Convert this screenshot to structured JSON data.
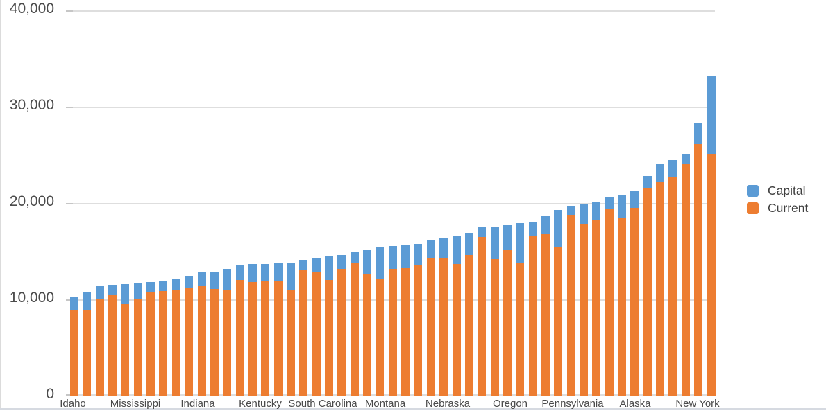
{
  "chart_data": {
    "type": "bar",
    "stacked": true,
    "orientation": "vertical",
    "title": "",
    "xlabel": "",
    "ylabel": "",
    "ylim": [
      0,
      40000
    ],
    "grid": true,
    "legend_position": "right",
    "n_bars": 51,
    "y_ticks": [
      {
        "value": 0,
        "label": "0"
      },
      {
        "value": 10000,
        "label": "10,000"
      },
      {
        "value": 20000,
        "label": "20,000"
      },
      {
        "value": 30000,
        "label": "30,000"
      },
      {
        "value": 40000,
        "label": "40,000"
      }
    ],
    "x_tick_labels": [
      {
        "index": 0,
        "label": "Idaho"
      },
      {
        "index": 5,
        "label": "Mississippi"
      },
      {
        "index": 10,
        "label": "Indiana"
      },
      {
        "index": 15,
        "label": "Kentucky"
      },
      {
        "index": 20,
        "label": "South Carolina"
      },
      {
        "index": 25,
        "label": "Montana"
      },
      {
        "index": 30,
        "label": "Nebraska"
      },
      {
        "index": 35,
        "label": "Oregon"
      },
      {
        "index": 40,
        "label": "Pennsylvania"
      },
      {
        "index": 45,
        "label": "Alaska"
      },
      {
        "index": 50,
        "label": "New York"
      }
    ],
    "series": [
      {
        "name": "Current",
        "color": "#ED7D31",
        "values": [
          8900,
          8900,
          10000,
          10450,
          9500,
          10000,
          10700,
          10850,
          11000,
          11250,
          11350,
          11100,
          11000,
          12000,
          11800,
          11900,
          11950,
          10950,
          13100,
          12800,
          12050,
          13200,
          13800,
          12650,
          12150,
          13150,
          13250,
          13600,
          14350,
          14300,
          13650,
          14600,
          16500,
          14150,
          15100,
          13750,
          16600,
          16850,
          15500,
          18750,
          17850,
          18200,
          19350,
          18500,
          19500,
          21500,
          22150,
          22700,
          24000,
          26100,
          25100
        ]
      },
      {
        "name": "Capital",
        "color": "#5B9BD5",
        "values": [
          1350,
          1850,
          1400,
          1050,
          2100,
          1750,
          1100,
          1000,
          1100,
          1150,
          1450,
          1800,
          2150,
          1600,
          1850,
          1800,
          1800,
          2900,
          1000,
          1500,
          2450,
          1400,
          1200,
          2450,
          3300,
          2400,
          2350,
          2150,
          1850,
          2000,
          3000,
          2300,
          1050,
          3400,
          2600,
          4150,
          1400,
          1850,
          3800,
          950,
          2050,
          1950,
          1300,
          2300,
          1700,
          1300,
          1850,
          1750,
          1100,
          2200,
          8100
        ]
      }
    ],
    "legend": [
      {
        "label": "Capital",
        "color": "#5B9BD5"
      },
      {
        "label": "Current",
        "color": "#ED7D31"
      }
    ],
    "colors": {
      "capital": "#5B9BD5",
      "current": "#ED7D31",
      "gridline": "#dedede",
      "axis_text": "#4b4b4b"
    }
  }
}
